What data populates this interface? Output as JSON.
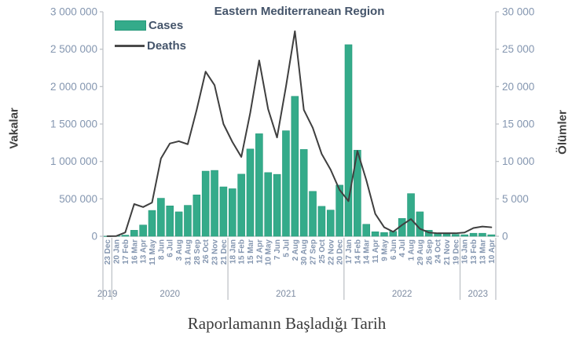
{
  "chart_data": {
    "type": "bar",
    "combo": "bar+line",
    "title": "Eastern Mediterranean Region",
    "xlabel": "Raporlamanın Başladığı Tarih",
    "ylabel_left": "Vakalar",
    "ylabel_right": "Ölümler",
    "ylim_left": [
      0,
      3000000
    ],
    "ylim_right": [
      0,
      30000
    ],
    "yticks_left": [
      "0",
      "500 000",
      "1 000 000",
      "1 500 000",
      "2 000 000",
      "2 500 000",
      "3 000 000"
    ],
    "yticks_right": [
      "0",
      "5 000",
      "10 000",
      "15 000",
      "20 000",
      "25 000",
      "30 000"
    ],
    "grid": false,
    "legend_position": "top-left-inside",
    "categories": [
      "23 Dec",
      "20 Jan",
      "17 Feb",
      "16 Mar",
      "13 Apr",
      "11 May",
      "8 Jun",
      "6 Jul",
      "3 Aug",
      "31 Aug",
      "28 Sep",
      "26 Oct",
      "23 Nov",
      "21 Dec",
      "18 Jan",
      "15 Feb",
      "15 Mar",
      "12 Apr",
      "10 May",
      "7 Jun",
      "5 Jul",
      "2 Aug",
      "30 Aug",
      "27 Sep",
      "25 Oct",
      "22 Nov",
      "20 Dec",
      "17 Jan",
      "14 Feb",
      "14 Mar",
      "11 Apr",
      "9 May",
      "6 Jun",
      "4 Jul",
      "1 Aug",
      "29 Aug",
      "26 Sep",
      "24 Oct",
      "21 Nov",
      "19 Dec",
      "16 Jan",
      "13 Feb",
      "13 Mar",
      "10 Apr"
    ],
    "year_groups": [
      {
        "label": "2019",
        "from": 0,
        "to": 0
      },
      {
        "label": "2020",
        "from": 1,
        "to": 13
      },
      {
        "label": "2021",
        "from": 14,
        "to": 26
      },
      {
        "label": "2022",
        "from": 27,
        "to": 39
      },
      {
        "label": "2023",
        "from": 40,
        "to": 43
      }
    ],
    "series": [
      {
        "name": "Cases",
        "type": "bar",
        "axis": "left",
        "color": "#34ab8a",
        "values": [
          1000,
          5000,
          15000,
          80000,
          150000,
          345000,
          508000,
          406000,
          326000,
          413000,
          553000,
          870000,
          880000,
          660000,
          635000,
          830000,
          1166000,
          1370000,
          851000,
          827000,
          1410000,
          1870000,
          1160000,
          600000,
          400000,
          350000,
          683000,
          2560000,
          1150000,
          160000,
          60000,
          50000,
          65000,
          238000,
          570000,
          326000,
          80000,
          40000,
          30000,
          25000,
          20000,
          40000,
          40000,
          20000
        ]
      },
      {
        "name": "Deaths",
        "type": "line",
        "axis": "right",
        "color": "#3f3f3f",
        "values": [
          10,
          30,
          500,
          4300,
          3900,
          4500,
          10400,
          12400,
          12700,
          12300,
          16900,
          22000,
          20200,
          15000,
          12600,
          10600,
          16500,
          23500,
          17000,
          13200,
          20000,
          27400,
          16900,
          14500,
          11000,
          8900,
          6200,
          4700,
          11400,
          7500,
          3000,
          1200,
          600,
          1500,
          2300,
          1000,
          500,
          400,
          400,
          400,
          500,
          1100,
          1300,
          1200
        ]
      }
    ]
  },
  "colors": {
    "bar_fill": "#34ab8a",
    "bar_border": "#27997b",
    "line": "#3f3f3f",
    "axis_line": "#bfc3c8",
    "tick_label": "#8496b0",
    "year_label": "#7e8ca2",
    "title": "#44546a",
    "axis_title": "#404040"
  }
}
